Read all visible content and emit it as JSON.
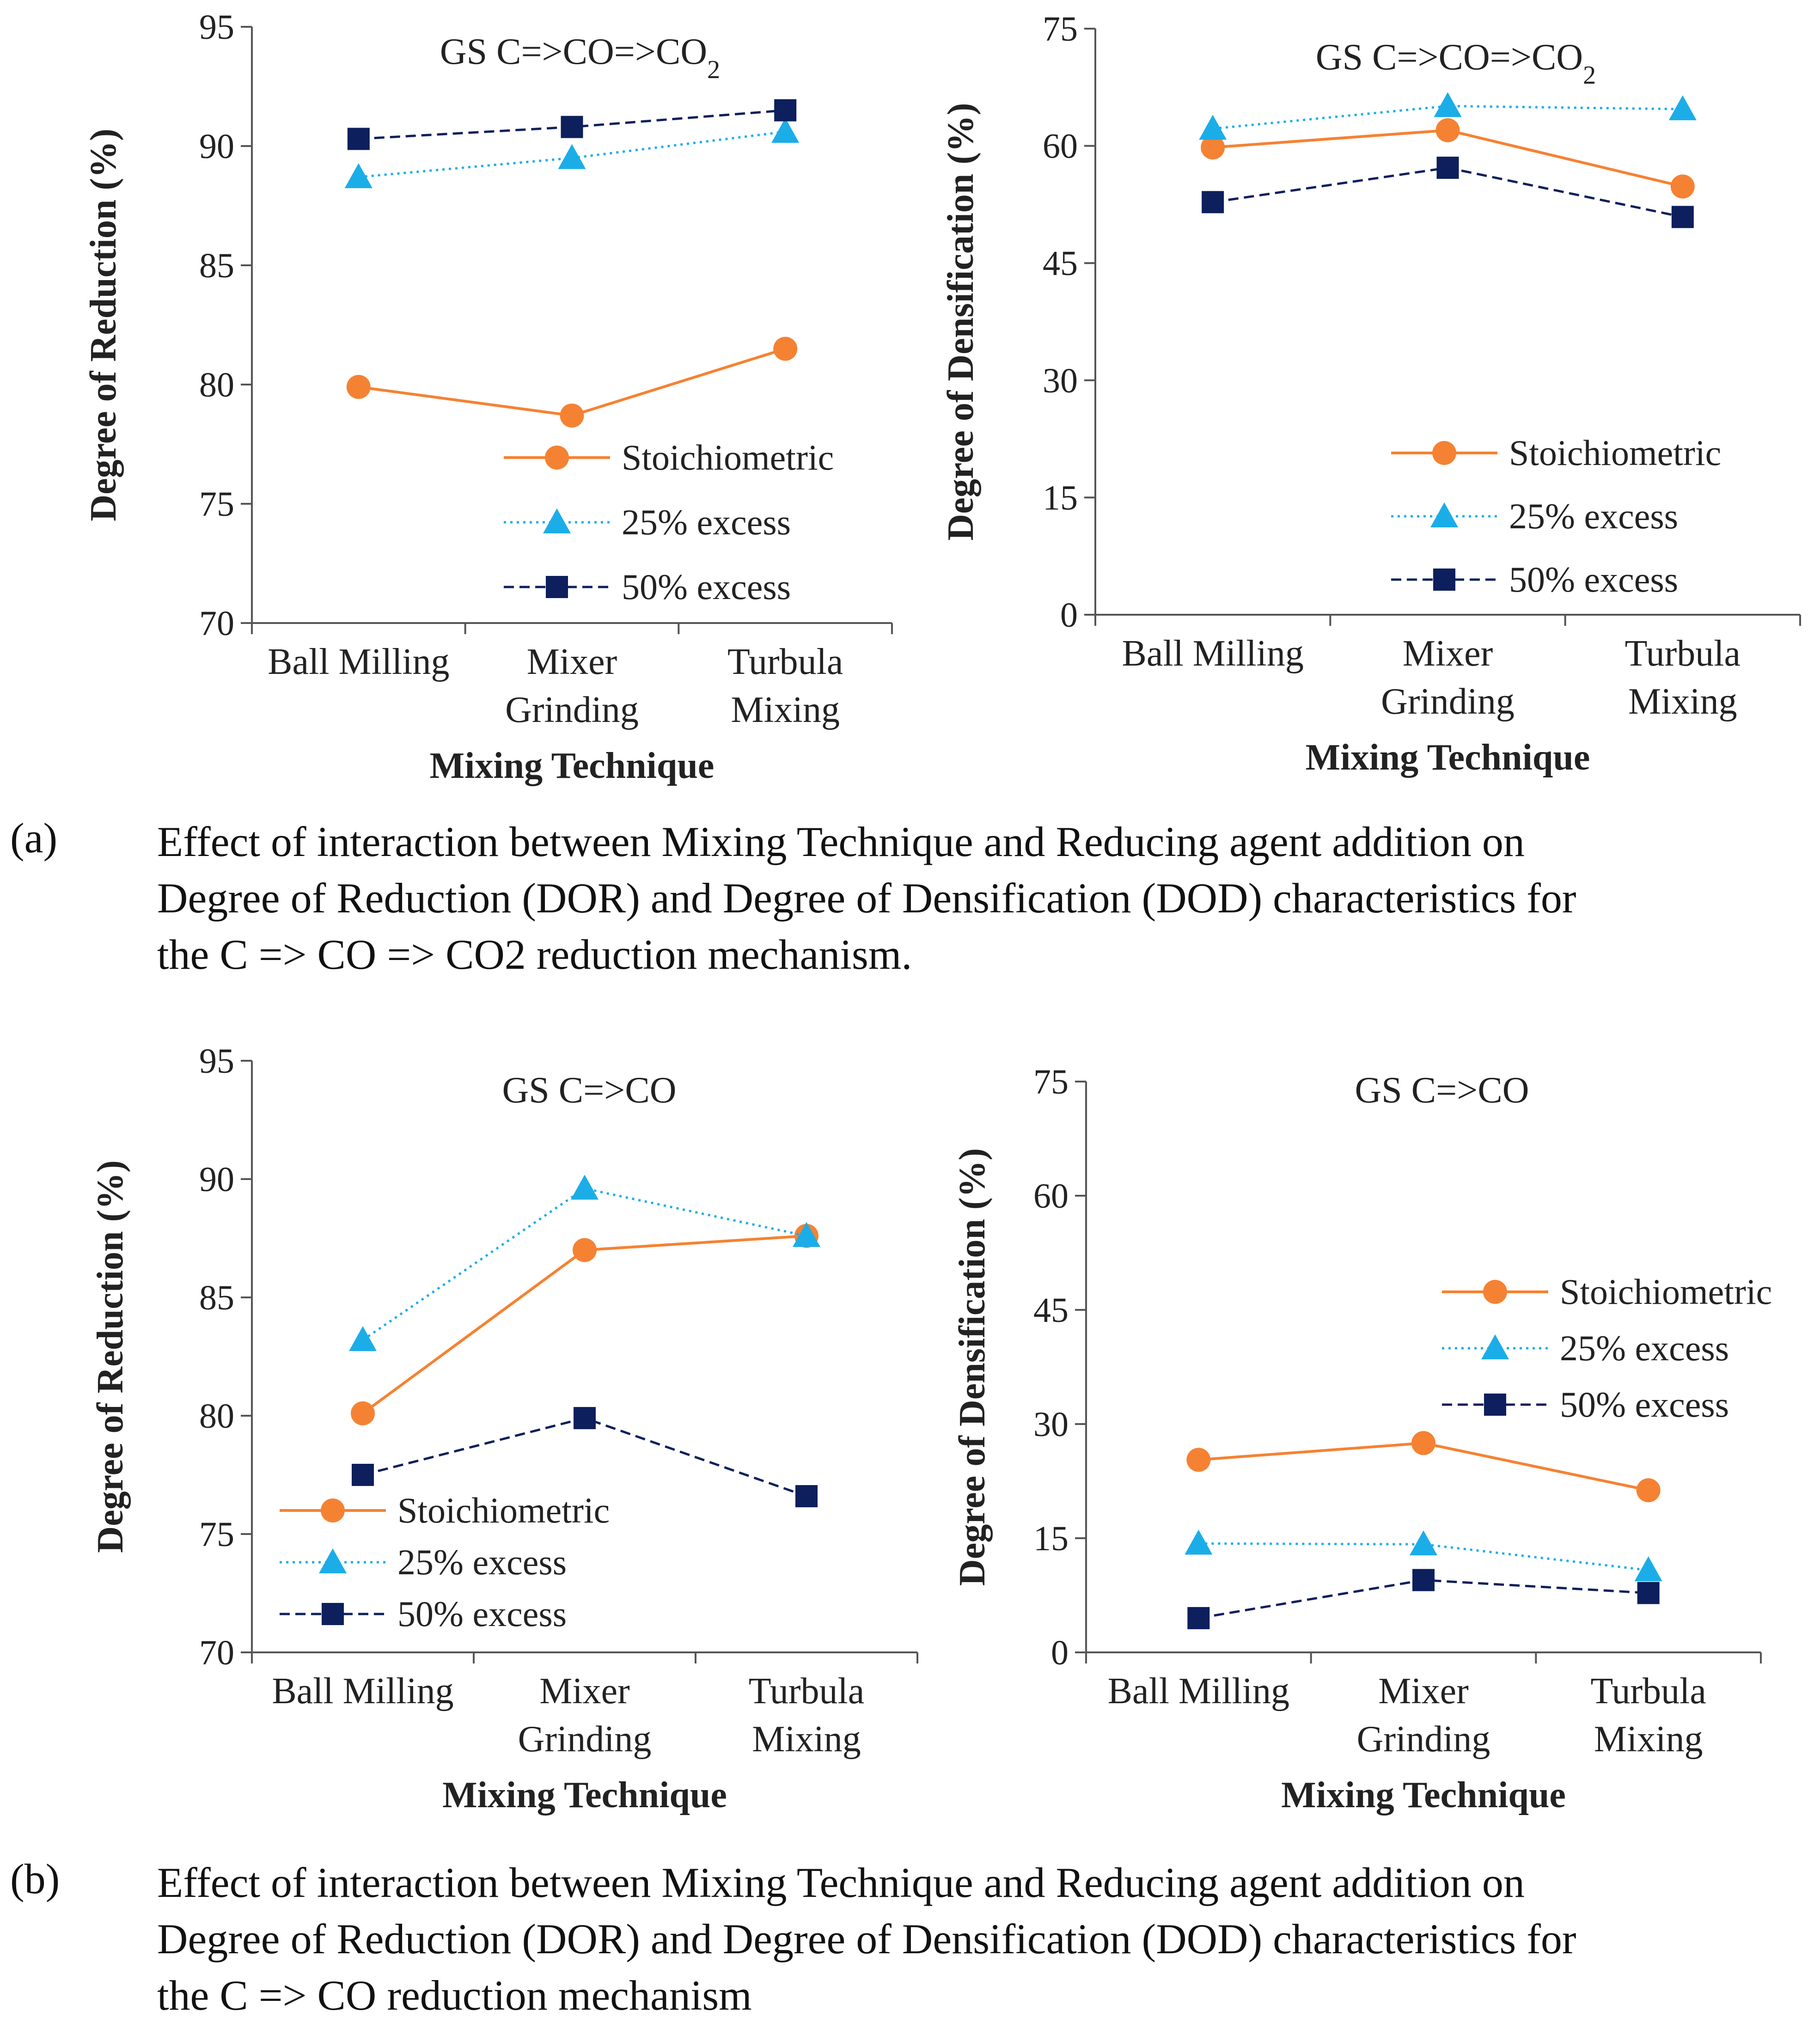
{
  "colors": {
    "stoich": "#F58233",
    "excess25": "#1BADE8",
    "excess50": "#0D1F5C",
    "axis": "#555555"
  },
  "legend_labels": [
    "Stoichiometric",
    "25% excess",
    "50% excess"
  ],
  "chart_data": [
    {
      "type": "line",
      "title": "GS C=>CO=>CO2",
      "xlabel": "Mixing Technique",
      "ylabel": "Degree of Reduction (%)",
      "categories": [
        "Ball Milling",
        "Mixer Grinding",
        "Turbula Mixing"
      ],
      "ylim": [
        70,
        95
      ],
      "yticks": [
        70,
        75,
        80,
        85,
        90,
        95
      ],
      "legend_position": "bottom-right",
      "series": [
        {
          "name": "Stoichiometric",
          "values": [
            79.9,
            78.7,
            81.5
          ]
        },
        {
          "name": "25% excess",
          "values": [
            88.7,
            89.5,
            90.6
          ]
        },
        {
          "name": "50% excess",
          "values": [
            90.3,
            90.8,
            91.5
          ]
        }
      ]
    },
    {
      "type": "line",
      "title": "GS C=>CO=>CO2",
      "xlabel": "Mixing Technique",
      "ylabel": "Degree of Densification (%)",
      "categories": [
        "Ball Milling",
        "Mixer Grinding",
        "Turbula Mixing"
      ],
      "ylim": [
        0,
        75
      ],
      "yticks": [
        0,
        15,
        30,
        45,
        60,
        75
      ],
      "legend_position": "bottom-right",
      "series": [
        {
          "name": "Stoichiometric",
          "values": [
            59.8,
            62.0,
            54.8
          ]
        },
        {
          "name": "25% excess",
          "values": [
            62.2,
            65.1,
            64.7
          ]
        },
        {
          "name": "50% excess",
          "values": [
            52.8,
            57.2,
            50.9
          ]
        }
      ]
    },
    {
      "type": "line",
      "title": "GS C=>CO",
      "xlabel": "Mixing Technique",
      "ylabel": "Degree of Reduction (%)",
      "categories": [
        "Ball Milling",
        "Mixer Grinding",
        "Turbula Mixing"
      ],
      "ylim": [
        70,
        95
      ],
      "yticks": [
        70,
        75,
        80,
        85,
        90,
        95
      ],
      "legend_position": "bottom-left",
      "series": [
        {
          "name": "Stoichiometric",
          "values": [
            80.1,
            87.0,
            87.6
          ]
        },
        {
          "name": "25% excess",
          "values": [
            83.2,
            89.6,
            87.6
          ]
        },
        {
          "name": "50% excess",
          "values": [
            77.5,
            79.9,
            76.6
          ]
        }
      ]
    },
    {
      "type": "line",
      "title": "GS C=>CO",
      "xlabel": "Mixing Technique",
      "ylabel": "Degree of Densification (%)",
      "categories": [
        "Ball Milling",
        "Mixer Grinding",
        "Turbula Mixing"
      ],
      "ylim": [
        0,
        75
      ],
      "yticks": [
        0,
        15,
        30,
        45,
        60,
        75
      ],
      "legend_position": "top-right",
      "series": [
        {
          "name": "Stoichiometric",
          "values": [
            25.3,
            27.5,
            21.3
          ]
        },
        {
          "name": "25% excess",
          "values": [
            14.3,
            14.2,
            10.8
          ]
        },
        {
          "name": "50% excess",
          "values": [
            4.5,
            9.5,
            7.8
          ]
        }
      ]
    }
  ],
  "captions": {
    "a": {
      "label": "(a)",
      "lines": [
        "Effect of interaction between Mixing Technique and Reducing agent addition on",
        "Degree of Reduction (DOR) and Degree of Densification (DOD) characteristics for",
        "the C => CO => CO2 reduction mechanism."
      ]
    },
    "b": {
      "label": "(b)",
      "lines": [
        "Effect of interaction between Mixing Technique and Reducing agent addition on",
        "Degree of Reduction (DOR) and Degree of Densification (DOD) characteristics for",
        "the C => CO reduction mechanism"
      ]
    }
  }
}
